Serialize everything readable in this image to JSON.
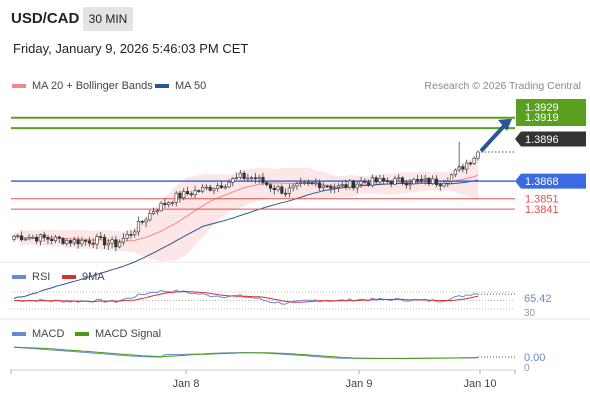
{
  "header": {
    "symbol": "USD/CAD",
    "timeframe": "30 MIN",
    "datetime": "Friday, January 9, 2026 5:46:03 PM CET"
  },
  "colors": {
    "ma20": "#f08a8a",
    "ma50": "#2a5599",
    "resistance": "#5aa020",
    "pivot": "#3a6be0",
    "support": "#e05050",
    "arrow": "#2a5599",
    "rsi": "#6a88d8",
    "rsi_ma": "#d93030",
    "macd": "#6a88d8",
    "macd_signal": "#4a9a1a",
    "bollinger_fill": "#fde2e2"
  },
  "main_legend": {
    "ma20_label": "MA 20 + Bollinger Bands",
    "ma50_label": "MA 50",
    "credit": "Research © 2026 Trading Central"
  },
  "rsi_legend": {
    "rsi_label": "RSI",
    "ma_label": "9MA"
  },
  "macd_legend": {
    "macd_label": "MACD",
    "signal_label": "MACD Signal"
  },
  "price_tags": {
    "r2": "1.3929",
    "r1": "1.3919",
    "current": "1.3896",
    "pivot": "1.3868",
    "s1": "1.3851",
    "s2": "1.3841"
  },
  "rsi_axis": {
    "value": "65.42",
    "level": "30"
  },
  "macd_axis": {
    "value": "0.00",
    "zero": "0"
  },
  "x_axis": {
    "labels": [
      "Jan 8",
      "Jan 9",
      "Jan 10"
    ]
  },
  "chart_data": [
    {
      "type": "candlestick",
      "title": "USD/CAD",
      "timeframe": "30 MIN",
      "x_ticks": [
        "Jan 8",
        "Jan 9",
        "Jan 10"
      ],
      "close_start": 1.3815,
      "close_low": 1.3807,
      "last_price": 1.3896,
      "trend": "up",
      "levels": {
        "resistance": [
          1.3929,
          1.3919
        ],
        "pivot": 1.3868,
        "support": [
          1.3851,
          1.3841
        ]
      },
      "indicators": [
        "MA 20 + Bollinger Bands",
        "MA 50"
      ],
      "forecast_arrow": "up toward 1.3929"
    },
    {
      "type": "line",
      "title": "RSI",
      "series": [
        {
          "name": "RSI"
        },
        {
          "name": "9MA"
        }
      ],
      "last_value": 65.42,
      "levels": [
        30
      ]
    },
    {
      "type": "line",
      "title": "MACD",
      "series": [
        {
          "name": "MACD"
        },
        {
          "name": "MACD Signal"
        }
      ],
      "last_value": 0.0
    }
  ]
}
